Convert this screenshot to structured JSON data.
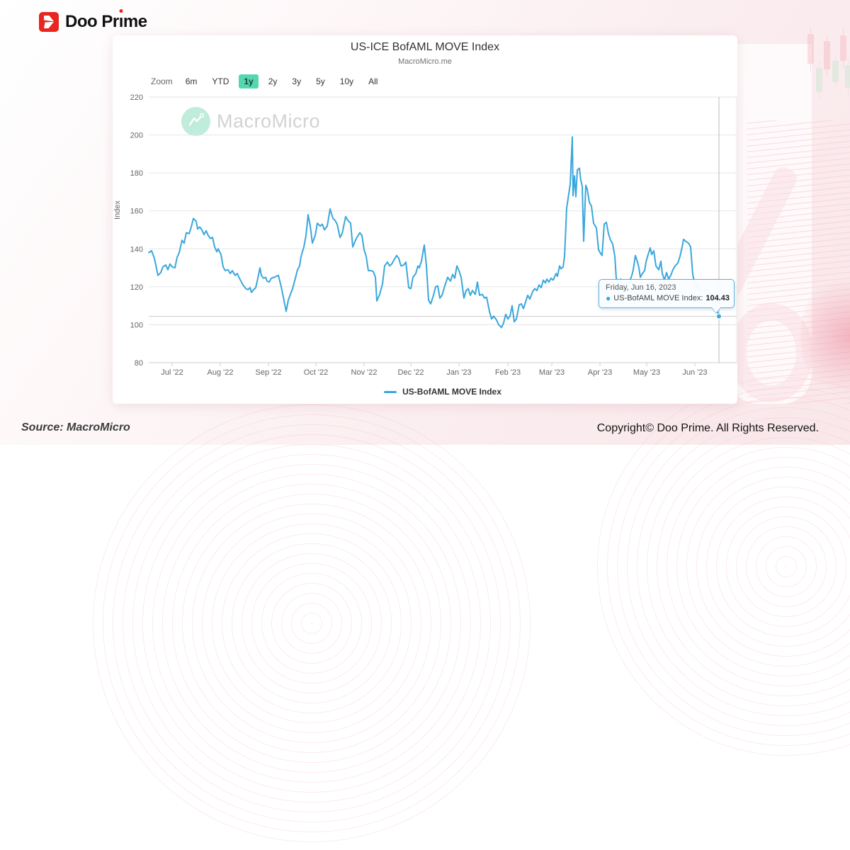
{
  "brand": {
    "logo_text": "Doo Prime"
  },
  "chart": {
    "title": "US-ICE BofAML MOVE Index",
    "subtitle": "MacroMicro.me",
    "watermark": "MacroMicro",
    "zoom_label": "Zoom",
    "ranges": [
      "6m",
      "YTD",
      "1y",
      "2y",
      "3y",
      "5y",
      "10y",
      "All"
    ],
    "active_range": "1y",
    "y_axis_title": "Index",
    "legend_label": "US-BofAML MOVE Index",
    "tooltip": {
      "date": "Friday, Jun 16, 2023",
      "series_label": "US-BofAML MOVE Index:",
      "bullet": "●",
      "value": "104.43"
    }
  },
  "footer": {
    "source": "Source: MacroMicro",
    "copyright": "Copyright© Doo Prime. All Rights Reserved."
  },
  "chart_data": {
    "type": "line",
    "title": "US-ICE BofAML MOVE Index",
    "subtitle": "MacroMicro.me",
    "ylabel": "Index",
    "ylim": [
      80,
      220
    ],
    "yticks": [
      80,
      100,
      120,
      140,
      160,
      180,
      200,
      220
    ],
    "x_range": [
      "2022-06-16",
      "2023-06-16"
    ],
    "x_units_span": 805,
    "grid": "horizontal",
    "legend_position": "bottom",
    "xticks": [
      {
        "t": 33,
        "label": "Jul '22"
      },
      {
        "t": 101,
        "label": "Aug '22"
      },
      {
        "t": 169,
        "label": "Sep '22"
      },
      {
        "t": 236,
        "label": "Oct '22"
      },
      {
        "t": 304,
        "label": "Nov '22"
      },
      {
        "t": 370,
        "label": "Dec '22"
      },
      {
        "t": 438,
        "label": "Jan '23"
      },
      {
        "t": 507,
        "label": "Feb '23"
      },
      {
        "t": 569,
        "label": "Mar '23"
      },
      {
        "t": 637,
        "label": "Apr '23"
      },
      {
        "t": 703,
        "label": "May '23"
      },
      {
        "t": 771,
        "label": "Jun '23"
      }
    ],
    "crosshair": {
      "t": 805,
      "value": 104.43,
      "date": "Friday, Jun 16, 2023"
    },
    "series": [
      {
        "name": "US-BofAML MOVE Index",
        "color": "#3aa7dc",
        "points": [
          [
            0,
            138
          ],
          [
            4,
            139
          ],
          [
            8,
            135
          ],
          [
            13,
            126
          ],
          [
            17,
            127.5
          ],
          [
            20,
            130.5
          ],
          [
            24,
            131.5
          ],
          [
            27,
            129
          ],
          [
            30,
            132
          ],
          [
            33,
            130.5
          ],
          [
            37,
            130
          ],
          [
            40,
            135.5
          ],
          [
            43,
            138
          ],
          [
            47,
            144.5
          ],
          [
            50,
            143
          ],
          [
            53,
            148.5
          ],
          [
            57,
            148
          ],
          [
            60,
            151.5
          ],
          [
            63,
            156
          ],
          [
            67,
            154.5
          ],
          [
            69,
            150.5
          ],
          [
            72,
            151.5
          ],
          [
            75,
            150
          ],
          [
            78,
            147.5
          ],
          [
            81,
            149.5
          ],
          [
            84,
            147
          ],
          [
            87,
            145.5
          ],
          [
            90,
            146
          ],
          [
            93,
            141
          ],
          [
            96,
            138.5
          ],
          [
            98,
            140
          ],
          [
            102,
            137
          ],
          [
            105,
            130.5
          ],
          [
            108,
            128.5
          ],
          [
            112,
            129
          ],
          [
            115,
            127
          ],
          [
            118,
            128.5
          ],
          [
            122,
            126
          ],
          [
            125,
            127
          ],
          [
            128,
            124.5
          ],
          [
            133,
            121
          ],
          [
            137,
            119
          ],
          [
            140,
            118.5
          ],
          [
            143,
            119.5
          ],
          [
            145,
            117
          ],
          [
            148,
            118.5
          ],
          [
            151,
            119.5
          ],
          [
            154,
            124.5
          ],
          [
            157,
            130
          ],
          [
            159,
            126
          ],
          [
            162,
            124.5
          ],
          [
            165,
            125
          ],
          [
            167,
            123
          ],
          [
            170,
            122.5
          ],
          [
            173,
            124.5
          ],
          [
            177,
            125
          ],
          [
            180,
            125.5
          ],
          [
            183,
            126
          ],
          [
            187,
            120
          ],
          [
            190,
            114.5
          ],
          [
            194,
            107
          ],
          [
            197,
            113
          ],
          [
            200,
            116
          ],
          [
            203,
            119
          ],
          [
            207,
            124.5
          ],
          [
            210,
            129
          ],
          [
            213,
            131
          ],
          [
            215,
            136
          ],
          [
            219,
            141
          ],
          [
            222,
            147
          ],
          [
            225,
            158
          ],
          [
            228,
            152
          ],
          [
            231,
            143
          ],
          [
            235,
            147
          ],
          [
            238,
            153.5
          ],
          [
            242,
            152
          ],
          [
            245,
            153
          ],
          [
            248,
            150
          ],
          [
            252,
            152
          ],
          [
            256,
            161
          ],
          [
            260,
            156
          ],
          [
            263,
            155
          ],
          [
            266,
            153
          ],
          [
            270,
            146
          ],
          [
            273,
            148
          ],
          [
            278,
            157
          ],
          [
            281,
            155
          ],
          [
            285,
            153.5
          ],
          [
            288,
            141
          ],
          [
            293,
            145.5
          ],
          [
            298,
            148.5
          ],
          [
            301,
            147
          ],
          [
            304,
            139.5
          ],
          [
            307,
            136
          ],
          [
            310,
            128.5
          ],
          [
            314,
            128.5
          ],
          [
            317,
            128
          ],
          [
            320,
            125
          ],
          [
            322,
            112.5
          ],
          [
            326,
            116
          ],
          [
            330,
            121.5
          ],
          [
            333,
            131
          ],
          [
            337,
            133
          ],
          [
            340,
            131
          ],
          [
            343,
            132
          ],
          [
            346,
            134
          ],
          [
            350,
            136.5
          ],
          [
            353,
            135
          ],
          [
            356,
            131
          ],
          [
            360,
            131.5
          ],
          [
            363,
            133
          ],
          [
            367,
            119.5
          ],
          [
            370,
            119
          ],
          [
            373,
            125
          ],
          [
            377,
            127
          ],
          [
            380,
            131
          ],
          [
            382,
            130
          ],
          [
            385,
            133.5
          ],
          [
            389,
            142
          ],
          [
            392,
            131
          ],
          [
            395,
            113
          ],
          [
            398,
            111
          ],
          [
            402,
            115.5
          ],
          [
            405,
            120
          ],
          [
            408,
            120.5
          ],
          [
            411,
            114
          ],
          [
            414,
            115.5
          ],
          [
            418,
            120.5
          ],
          [
            422,
            125
          ],
          [
            426,
            123
          ],
          [
            429,
            126.5
          ],
          [
            432,
            124.5
          ],
          [
            435,
            131
          ],
          [
            438,
            128.5
          ],
          [
            441,
            125
          ],
          [
            445,
            114
          ],
          [
            448,
            118
          ],
          [
            451,
            119
          ],
          [
            454,
            115.5
          ],
          [
            457,
            118
          ],
          [
            461,
            116
          ],
          [
            464,
            122.5
          ],
          [
            467,
            115.5
          ],
          [
            471,
            116
          ],
          [
            474,
            114
          ],
          [
            477,
            114.5
          ],
          [
            481,
            107
          ],
          [
            484,
            103
          ],
          [
            487,
            104.5
          ],
          [
            491,
            102.5
          ],
          [
            494,
            100
          ],
          [
            498,
            98.5
          ],
          [
            501,
            101
          ],
          [
            504,
            105.5
          ],
          [
            507,
            103
          ],
          [
            510,
            104.5
          ],
          [
            513,
            110
          ],
          [
            516,
            101.5
          ],
          [
            519,
            103
          ],
          [
            523,
            110.5
          ],
          [
            526,
            111
          ],
          [
            529,
            108.5
          ],
          [
            532,
            112
          ],
          [
            535,
            115.5
          ],
          [
            538,
            113.5
          ],
          [
            542,
            117.5
          ],
          [
            545,
            119
          ],
          [
            548,
            118
          ],
          [
            551,
            121
          ],
          [
            554,
            119.5
          ],
          [
            557,
            123.5
          ],
          [
            560,
            122
          ],
          [
            562,
            124
          ],
          [
            565,
            122.5
          ],
          [
            568,
            124.5
          ],
          [
            571,
            123.5
          ],
          [
            575,
            127
          ],
          [
            577,
            125.5
          ],
          [
            580,
            131
          ],
          [
            582,
            129.5
          ],
          [
            585,
            130.5
          ],
          [
            587,
            136
          ],
          [
            590,
            161.5
          ],
          [
            592,
            166.5
          ],
          [
            595,
            174
          ],
          [
            598,
            199
          ],
          [
            599,
            168
          ],
          [
            601,
            178.5
          ],
          [
            603,
            167.5
          ],
          [
            605,
            181.5
          ],
          [
            608,
            182.5
          ],
          [
            610,
            176
          ],
          [
            612,
            173
          ],
          [
            614,
            144
          ],
          [
            617,
            173.5
          ],
          [
            619,
            171.5
          ],
          [
            622,
            164.5
          ],
          [
            625,
            162.5
          ],
          [
            628,
            153.5
          ],
          [
            632,
            151
          ],
          [
            635,
            139.5
          ],
          [
            638,
            137.5
          ],
          [
            640,
            136.5
          ],
          [
            643,
            153
          ],
          [
            646,
            154
          ],
          [
            649,
            148
          ],
          [
            652,
            144.5
          ],
          [
            655,
            142.5
          ],
          [
            658,
            136
          ],
          [
            660,
            124.5
          ],
          [
            663,
            121.5
          ],
          [
            666,
            124
          ],
          [
            669,
            121
          ],
          [
            671,
            120
          ],
          [
            674,
            122
          ],
          [
            676,
            120.5
          ],
          [
            679,
            123
          ],
          [
            682,
            126
          ],
          [
            684,
            129
          ],
          [
            687,
            136.5
          ],
          [
            690,
            133
          ],
          [
            692,
            130
          ],
          [
            694,
            125
          ],
          [
            697,
            127
          ],
          [
            700,
            128.5
          ],
          [
            702,
            133
          ],
          [
            705,
            137
          ],
          [
            708,
            140.5
          ],
          [
            710,
            137
          ],
          [
            713,
            139
          ],
          [
            716,
            131
          ],
          [
            720,
            129
          ],
          [
            723,
            133.5
          ],
          [
            725,
            127
          ],
          [
            728,
            123.5
          ],
          [
            731,
            127.5
          ],
          [
            734,
            124
          ],
          [
            737,
            126
          ],
          [
            740,
            129
          ],
          [
            743,
            131
          ],
          [
            747,
            132.5
          ],
          [
            750,
            136
          ],
          [
            753,
            141
          ],
          [
            755,
            145
          ],
          [
            758,
            144
          ],
          [
            760,
            143.5
          ],
          [
            762,
            143
          ],
          [
            765,
            141
          ],
          [
            768,
            126.5
          ],
          [
            770,
            123
          ],
          [
            773,
            121
          ],
          [
            776,
            119
          ],
          [
            780,
            118
          ],
          [
            784,
            117.5
          ],
          [
            788,
            119
          ],
          [
            791,
            117
          ],
          [
            795,
            115.5
          ],
          [
            798,
            113
          ],
          [
            802,
            108
          ],
          [
            805,
            104.43
          ]
        ]
      }
    ]
  }
}
